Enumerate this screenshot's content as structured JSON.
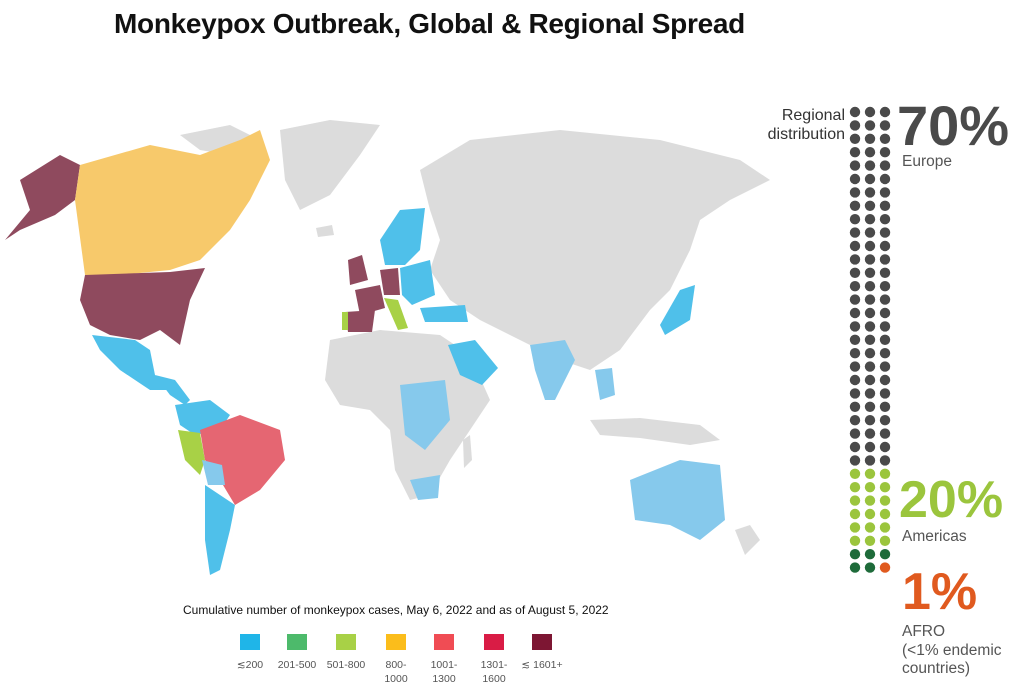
{
  "title": "Monkeypox Outbreak, Global & Regional Spread",
  "legend": {
    "caption": "Cumulative number of monkeypox cases, May 6, 2022 and  as of August 5, 2022",
    "items": [
      {
        "label": "≲200",
        "color": "#1fb5e8"
      },
      {
        "label": "201-500",
        "color": "#4dba6b"
      },
      {
        "label": "501-800",
        "color": "#a8d146"
      },
      {
        "label": "800-\n1000",
        "color": "#fbbd1b"
      },
      {
        "label": "1001-\n1300",
        "color": "#f04c54"
      },
      {
        "label": "1301-\n1600",
        "color": "#d91c45"
      },
      {
        "label": "≲ 1601+",
        "color": "#7d1633"
      }
    ]
  },
  "colors": {
    "land_default": "#dcdcdc",
    "ocean": "#ffffff",
    "europe_dots": "#4a4a4a",
    "americas_dots": "#9bc53d",
    "afro_dots": "#1e6b3a",
    "afro_pct": "#e05a1f"
  },
  "regional": {
    "label": "Regional distribution",
    "europe": {
      "pct": "70%",
      "name": "Europe"
    },
    "americas": {
      "pct": "20%",
      "name": "Americas"
    },
    "afro": {
      "pct": "1%",
      "name": "AFRO",
      "note": "(<1% endemic countries)"
    }
  },
  "country_fills": [
    {
      "region": "United States",
      "color": "#8f4a5e"
    },
    {
      "region": "Alaska",
      "color": "#8f4a5e"
    },
    {
      "region": "Canada",
      "color": "#f7c96b"
    },
    {
      "region": "Mexico",
      "color": "#4fc0ea"
    },
    {
      "region": "Central America",
      "color": "#4fc0ea"
    },
    {
      "region": "Colombia",
      "color": "#4fc0ea"
    },
    {
      "region": "Brazil",
      "color": "#e56672"
    },
    {
      "region": "Peru",
      "color": "#a8d146"
    },
    {
      "region": "Argentina",
      "color": "#4fc0ea"
    },
    {
      "region": "Chile",
      "color": "#4fc0ea"
    },
    {
      "region": "Bolivia",
      "color": "#86c9ec"
    },
    {
      "region": "United Kingdom",
      "color": "#8f4a5e"
    },
    {
      "region": "Spain",
      "color": "#8f4a5e"
    },
    {
      "region": "Portugal",
      "color": "#a8d146"
    },
    {
      "region": "France",
      "color": "#8f4a5e"
    },
    {
      "region": "Germany",
      "color": "#8f4a5e"
    },
    {
      "region": "Italy",
      "color": "#a8d146"
    },
    {
      "region": "Scandinavia",
      "color": "#4fc0ea"
    },
    {
      "region": "Eastern Europe",
      "color": "#4fc0ea"
    },
    {
      "region": "Turkey",
      "color": "#4fc0ea"
    },
    {
      "region": "Saudi Arabia",
      "color": "#4fc0ea"
    },
    {
      "region": "India",
      "color": "#86c9ec"
    },
    {
      "region": "Japan",
      "color": "#4fc0ea"
    },
    {
      "region": "Southeast Asia",
      "color": "#86c9ec"
    },
    {
      "region": "Australia",
      "color": "#86c9ec"
    },
    {
      "region": "Central Africa",
      "color": "#86c9ec"
    },
    {
      "region": "South Africa",
      "color": "#86c9ec"
    }
  ]
}
